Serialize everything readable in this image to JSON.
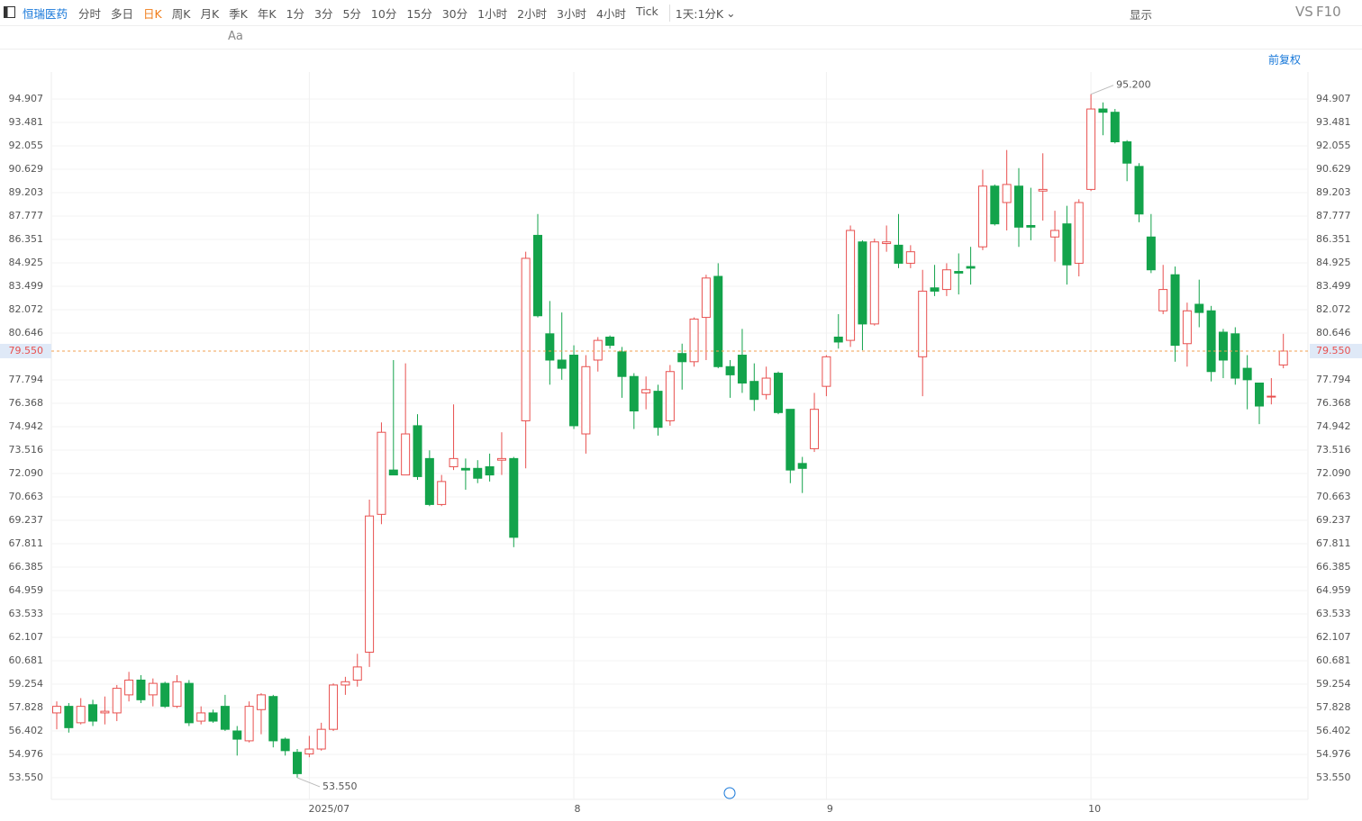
{
  "toolbar": {
    "stock": "恒瑞医药",
    "periods": [
      "分时",
      "多日",
      "日K",
      "周K",
      "月K",
      "季K",
      "年K",
      "1分",
      "3分",
      "5分",
      "10分",
      "15分",
      "30分",
      "1小时",
      "2小时",
      "3小时",
      "4小时",
      "Tick"
    ],
    "interval": "1天:1分K",
    "display": "显示",
    "vs": "VS",
    "f10": "F10",
    "font_tool": "Aa",
    "adjust": "前复权"
  },
  "chart_data": {
    "type": "candlestick",
    "categories": [
      null,
      null,
      null,
      null,
      null,
      null,
      null,
      null,
      null,
      null,
      null,
      null,
      null,
      null,
      null,
      null,
      null,
      null,
      null,
      null,
      null,
      "2025/07",
      null,
      null,
      null,
      null,
      null,
      null,
      null,
      null,
      null,
      null,
      null,
      null,
      null,
      null,
      null,
      null,
      null,
      null,
      null,
      null,
      null,
      "8",
      null,
      null,
      null,
      null,
      null,
      null,
      null,
      null,
      null,
      null,
      null,
      null,
      null,
      null,
      null,
      null,
      null,
      null,
      null,
      null,
      "9",
      null,
      null,
      null,
      null,
      null,
      null,
      null,
      null,
      null,
      null,
      null,
      null,
      null,
      null,
      null,
      null,
      null,
      null,
      null,
      null,
      null,
      "10",
      null,
      null,
      null,
      null,
      null,
      null,
      null,
      null,
      null,
      null,
      null,
      null,
      null,
      null,
      null,
      null
    ],
    "open": [
      57.5,
      57.9,
      56.9,
      58.0,
      57.5,
      57.5,
      58.6,
      59.5,
      58.6,
      59.3,
      57.9,
      59.3,
      57.0,
      57.5,
      57.9,
      56.4,
      55.8,
      57.7,
      58.5,
      55.9,
      55.1,
      55.0,
      55.3,
      56.5,
      59.2,
      59.5,
      61.2,
      69.6,
      72.3,
      72.0,
      75.0,
      73.0,
      70.2,
      72.5,
      72.4,
      72.4,
      72.5,
      72.9,
      73.0,
      75.3,
      86.6,
      80.6,
      79.0,
      79.3,
      74.5,
      79.0,
      80.4,
      79.5,
      78.0,
      77.0,
      77.1,
      75.3,
      79.4,
      78.9,
      81.6,
      84.1,
      78.6,
      79.3,
      77.7,
      76.9,
      78.2,
      76.0,
      72.7,
      73.6,
      77.4,
      80.4,
      80.2,
      86.2,
      81.2,
      86.1,
      86.0,
      84.9,
      79.2,
      83.4,
      83.3,
      84.4,
      84.7,
      85.9,
      89.6,
      88.6,
      89.6,
      87.2,
      89.3,
      86.5,
      87.3,
      84.9,
      89.4,
      94.3,
      94.1,
      92.3,
      90.8,
      86.5,
      82.0,
      84.2,
      80.0,
      82.4,
      82.0,
      80.7,
      80.6,
      78.5,
      77.6,
      76.8,
      78.7
    ],
    "high": [
      58.2,
      58.1,
      58.4,
      58.3,
      58.5,
      59.2,
      60.0,
      59.8,
      59.6,
      59.4,
      59.8,
      59.5,
      57.9,
      57.7,
      58.6,
      56.7,
      58.2,
      58.7,
      58.6,
      56.0,
      55.3,
      56.1,
      56.9,
      59.3,
      59.7,
      61.1,
      70.5,
      75.2,
      79.0,
      78.8,
      75.7,
      73.5,
      72.0,
      76.3,
      73.0,
      72.9,
      73.3,
      74.6,
      73.1,
      85.6,
      87.9,
      82.6,
      81.9,
      79.9,
      79.3,
      80.4,
      80.5,
      79.8,
      78.2,
      78.0,
      77.5,
      78.7,
      80.0,
      81.6,
      84.2,
      84.9,
      79.0,
      80.9,
      78.8,
      78.6,
      78.3,
      76.0,
      73.1,
      77.0,
      79.3,
      81.8,
      87.2,
      86.3,
      86.4,
      87.2,
      87.9,
      86.0,
      84.5,
      84.8,
      84.9,
      85.5,
      85.9,
      90.6,
      89.7,
      91.8,
      90.7,
      89.5,
      91.6,
      88.1,
      88.4,
      88.8,
      95.2,
      94.7,
      94.3,
      92.4,
      91.0,
      87.9,
      84.8,
      84.7,
      82.5,
      83.9,
      82.3,
      80.9,
      81.0,
      79.3,
      77.6,
      77.9,
      80.6
    ],
    "low": [
      56.5,
      56.3,
      56.8,
      56.7,
      56.8,
      57.0,
      58.2,
      58.1,
      57.9,
      57.8,
      57.8,
      56.7,
      56.8,
      56.9,
      56.4,
      54.9,
      55.7,
      56.2,
      55.4,
      54.9,
      53.55,
      54.8,
      55.2,
      56.4,
      58.6,
      59.1,
      60.3,
      69.0,
      72.0,
      72.0,
      71.7,
      70.1,
      70.1,
      72.3,
      71.1,
      71.5,
      71.6,
      72.0,
      67.6,
      72.4,
      81.6,
      77.5,
      77.8,
      74.8,
      73.3,
      78.3,
      79.7,
      76.7,
      74.8,
      76.0,
      74.4,
      75.0,
      77.2,
      78.6,
      79.0,
      78.5,
      76.7,
      77.0,
      75.9,
      76.6,
      75.7,
      71.5,
      70.9,
      73.4,
      76.8,
      79.7,
      79.8,
      79.6,
      81.1,
      85.6,
      84.6,
      84.6,
      76.8,
      82.9,
      82.9,
      83.0,
      83.6,
      85.7,
      87.2,
      86.9,
      85.9,
      86.3,
      87.5,
      85.0,
      83.6,
      84.1,
      89.3,
      92.7,
      92.2,
      89.9,
      87.4,
      84.3,
      81.8,
      78.9,
      78.6,
      81.0,
      77.7,
      77.9,
      77.5,
      76.0,
      75.1,
      76.3,
      78.5
    ],
    "close": [
      57.9,
      56.6,
      57.9,
      57.0,
      57.6,
      59.0,
      59.5,
      58.3,
      59.3,
      57.9,
      59.4,
      56.9,
      57.5,
      57.0,
      56.5,
      55.9,
      57.9,
      58.6,
      55.8,
      55.2,
      53.8,
      55.3,
      56.5,
      59.2,
      59.4,
      60.3,
      69.5,
      74.6,
      72.0,
      74.5,
      71.9,
      70.2,
      71.6,
      73.0,
      72.3,
      71.8,
      72.0,
      73.0,
      68.2,
      85.2,
      81.7,
      79.0,
      78.5,
      75.0,
      78.6,
      80.2,
      79.9,
      78.0,
      75.9,
      77.2,
      74.9,
      78.3,
      78.9,
      81.5,
      84.0,
      78.6,
      78.1,
      77.6,
      76.6,
      77.9,
      75.8,
      72.3,
      72.4,
      76.0,
      79.2,
      80.1,
      86.9,
      81.2,
      86.2,
      86.2,
      84.9,
      85.6,
      83.2,
      83.2,
      84.5,
      84.3,
      84.6,
      89.6,
      87.3,
      89.7,
      87.1,
      87.1,
      89.4,
      86.9,
      84.8,
      88.6,
      94.3,
      94.1,
      92.3,
      91.0,
      87.9,
      84.5,
      83.3,
      79.9,
      82.0,
      81.9,
      78.3,
      79.0,
      77.9,
      77.8,
      76.2,
      76.8,
      79.55
    ],
    "up_color": "#e8504f",
    "down_color": "#13a34b",
    "ylim": [
      52.23,
      97.54
    ],
    "yticks": [
      {
        "value": 53.55,
        "label": "53.550"
      },
      {
        "value": 54.976,
        "label": "54.976"
      },
      {
        "value": 56.402,
        "label": "56.402"
      },
      {
        "value": 57.828,
        "label": "57.828"
      },
      {
        "value": 59.254,
        "label": "59.254"
      },
      {
        "value": 60.681,
        "label": "60.681"
      },
      {
        "value": 62.107,
        "label": "62.107"
      },
      {
        "value": 63.533,
        "label": "63.533"
      },
      {
        "value": 64.959,
        "label": "64.959"
      },
      {
        "value": 66.385,
        "label": "66.385"
      },
      {
        "value": 67.811,
        "label": "67.811"
      },
      {
        "value": 69.237,
        "label": "69.237"
      },
      {
        "value": 70.663,
        "label": "70.663"
      },
      {
        "value": 72.09,
        "label": "72.090"
      },
      {
        "value": 73.516,
        "label": "73.516"
      },
      {
        "value": 74.942,
        "label": "74.942"
      },
      {
        "value": 76.368,
        "label": "76.368"
      },
      {
        "value": 77.794,
        "label": "77.794"
      },
      {
        "value": 80.646,
        "label": "80.646"
      },
      {
        "value": 82.072,
        "label": "82.072"
      },
      {
        "value": 83.499,
        "label": "83.499"
      },
      {
        "value": 84.925,
        "label": "84.925"
      },
      {
        "value": 86.351,
        "label": "86.351"
      },
      {
        "value": 87.777,
        "label": "87.777"
      },
      {
        "value": 89.203,
        "label": "89.203"
      },
      {
        "value": 90.629,
        "label": "90.629"
      },
      {
        "value": 92.055,
        "label": "92.055"
      },
      {
        "value": 93.481,
        "label": "93.481"
      },
      {
        "value": 94.907,
        "label": "94.907"
      }
    ],
    "last_price": {
      "value": 79.55,
      "label": "79.550"
    },
    "max_label": {
      "value": 95.2,
      "label": "95.200"
    },
    "min_label": {
      "value": 53.55,
      "label": "53.550"
    },
    "grid": true
  }
}
